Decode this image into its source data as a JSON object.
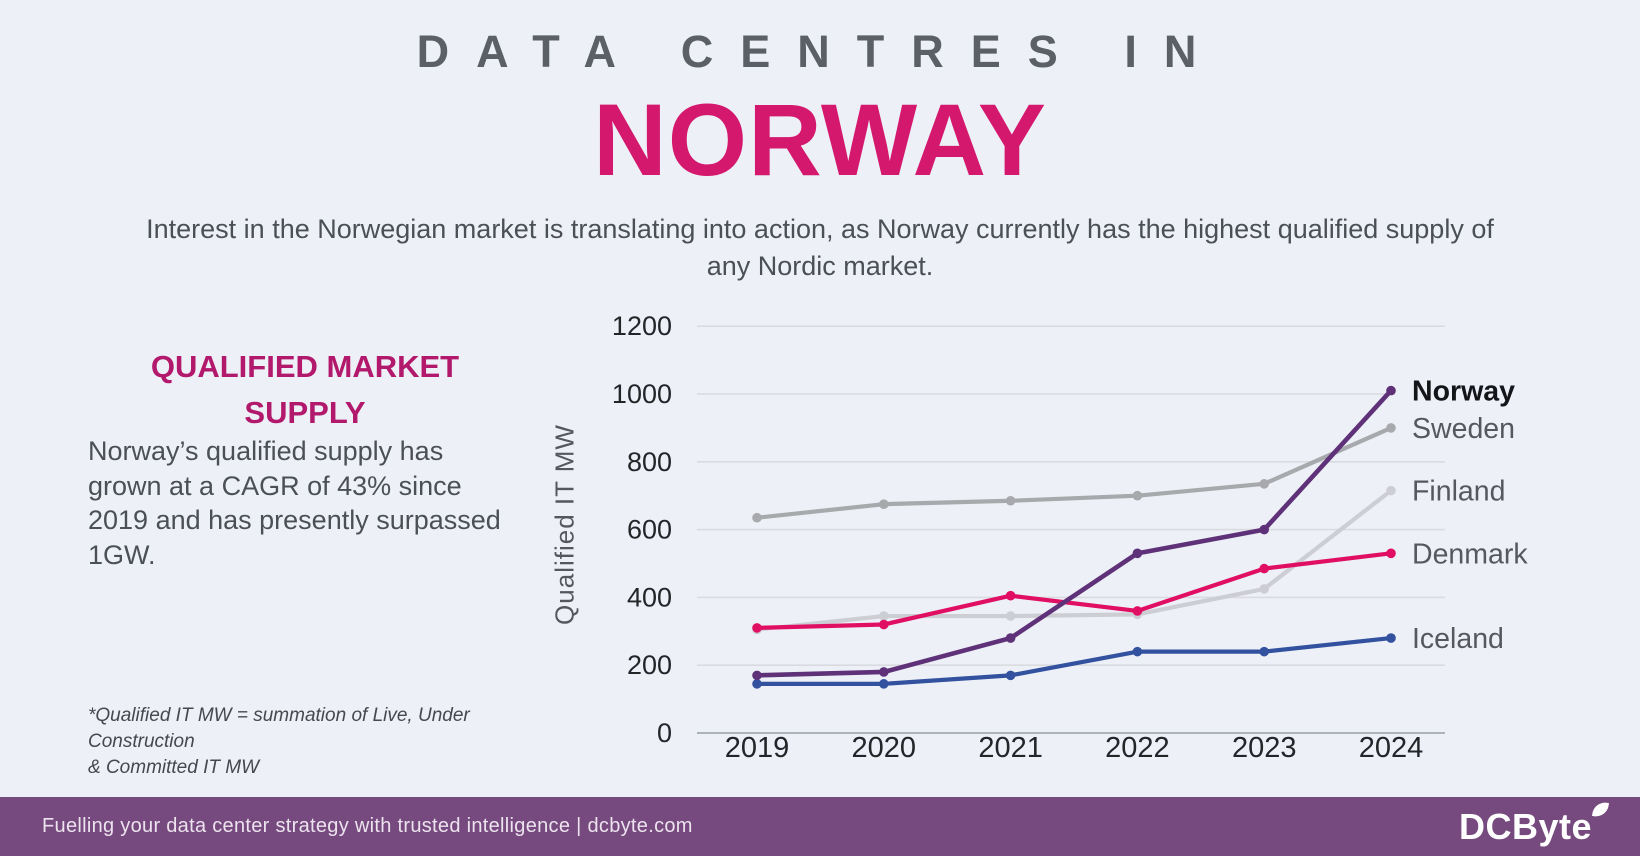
{
  "header": {
    "title_line1": "DATA CENTRES IN",
    "title_line2": "NORWAY",
    "subtitle": "Interest in the Norwegian market is translating into action, as Norway currently has the highest qualified supply of\nany Nordic market."
  },
  "sidebar": {
    "heading": "QUALIFIED MARKET\nSUPPLY",
    "body": "Norway’s qualified supply has\ngrown at a CAGR of 43% since\n2019 and has presently surpassed\n1GW.",
    "footnote": "*Qualified IT MW = summation of Live, Under Construction\n& Committed IT MW"
  },
  "footer": {
    "tagline": "Fuelling your data center strategy with trusted intelligence | dcbyte.com",
    "logo_text": "DCByte"
  },
  "colors": {
    "background": "#edf0f6",
    "title_accent": "#d3186e",
    "heading_accent": "#b2186b",
    "footer_background": "#764a7e",
    "gridline": "#d9dbe0",
    "axis_line": "#aeb3ba",
    "tick_text": "#232528",
    "legend_text": "#55595f",
    "legend_emphasis_text": "#141518"
  },
  "chart_data": {
    "type": "line",
    "title": "",
    "xlabel": "",
    "ylabel": "Qualified IT MW",
    "categories": [
      "2019",
      "2020",
      "2021",
      "2022",
      "2023",
      "2024"
    ],
    "ylim": [
      0,
      1200
    ],
    "ytick_step": 200,
    "grid": true,
    "legend_position": "right-end-labels",
    "series": [
      {
        "name": "Norway",
        "color": "#5e3179",
        "emphasis": true,
        "values": [
          170,
          180,
          280,
          530,
          600,
          1010
        ]
      },
      {
        "name": "Sweden",
        "color": "#a7a9ac",
        "emphasis": false,
        "values": [
          635,
          675,
          685,
          700,
          735,
          900
        ]
      },
      {
        "name": "Finland",
        "color": "#cdced3",
        "emphasis": false,
        "values": [
          305,
          345,
          345,
          350,
          425,
          715
        ]
      },
      {
        "name": "Denmark",
        "color": "#e00f63",
        "emphasis": false,
        "values": [
          310,
          320,
          405,
          360,
          485,
          530
        ]
      },
      {
        "name": "Iceland",
        "color": "#32519f",
        "emphasis": false,
        "values": [
          145,
          145,
          170,
          240,
          240,
          280
        ]
      }
    ]
  }
}
